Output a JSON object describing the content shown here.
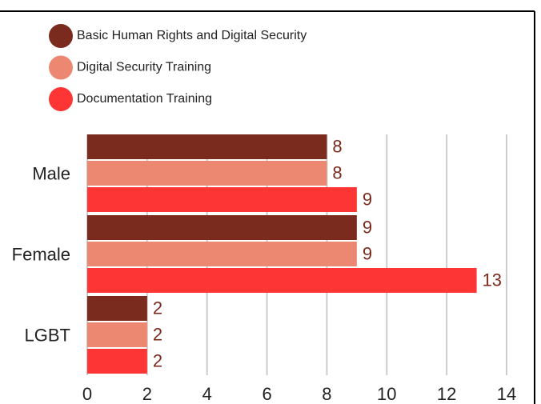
{
  "chart_data": {
    "type": "bar",
    "orientation": "horizontal",
    "categories": [
      "Male",
      "Female",
      "LGBT"
    ],
    "series": [
      {
        "name": "Basic Human Rights and Digital Security",
        "color": "#7b2a1e",
        "values": [
          8,
          9,
          2
        ]
      },
      {
        "name": "Digital Security Training",
        "color": "#ec8872",
        "values": [
          8,
          9,
          2
        ]
      },
      {
        "name": "Documentation Training",
        "color": "#fe3535",
        "values": [
          9,
          13,
          2
        ]
      }
    ],
    "xlim": [
      0,
      14
    ],
    "xticks": [
      0,
      2,
      4,
      6,
      8,
      10,
      12,
      14
    ],
    "grid": true,
    "legend": "top-left"
  }
}
